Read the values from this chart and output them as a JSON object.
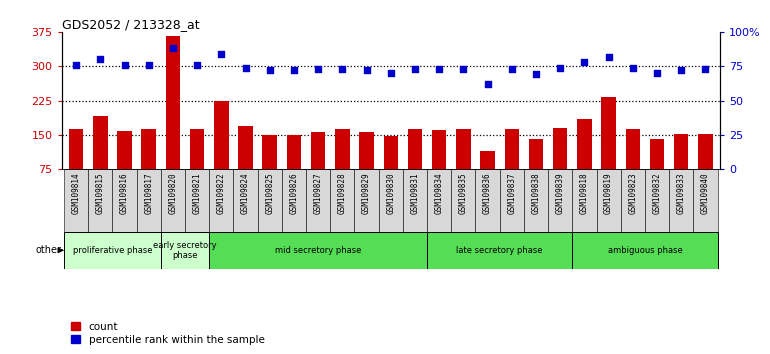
{
  "title": "GDS2052 / 213328_at",
  "samples": [
    "GSM109814",
    "GSM109815",
    "GSM109816",
    "GSM109817",
    "GSM109820",
    "GSM109821",
    "GSM109822",
    "GSM109824",
    "GSM109825",
    "GSM109826",
    "GSM109827",
    "GSM109828",
    "GSM109829",
    "GSM109830",
    "GSM109831",
    "GSM109834",
    "GSM109835",
    "GSM109836",
    "GSM109837",
    "GSM109838",
    "GSM109839",
    "GSM109818",
    "GSM109819",
    "GSM109823",
    "GSM109832",
    "GSM109833",
    "GSM109840"
  ],
  "counts": [
    163,
    192,
    158,
    163,
    365,
    163,
    224,
    170,
    150,
    150,
    157,
    162,
    157,
    148,
    162,
    160,
    162,
    115,
    162,
    140,
    166,
    185,
    233,
    162,
    142,
    151,
    151
  ],
  "percentiles": [
    76,
    80,
    76,
    76,
    88,
    76,
    84,
    74,
    72,
    72,
    73,
    73,
    72,
    70,
    73,
    73,
    73,
    62,
    73,
    69,
    74,
    78,
    82,
    74,
    70,
    72,
    73
  ],
  "ylim_left": [
    75,
    375
  ],
  "ylim_right": [
    0,
    100
  ],
  "yticks_left": [
    75,
    150,
    225,
    300,
    375
  ],
  "yticks_right": [
    0,
    25,
    50,
    75,
    100
  ],
  "ytick_labels_left": [
    "75",
    "150",
    "225",
    "300",
    "375"
  ],
  "ytick_labels_right": [
    "0",
    "25",
    "50",
    "75",
    "100%"
  ],
  "hlines": [
    150,
    225,
    300
  ],
  "bar_color": "#cc0000",
  "dot_color": "#0000cc",
  "phase_groups": [
    {
      "label": "proliferative phase",
      "start": 0,
      "end": 3,
      "color": "#ccffcc"
    },
    {
      "label": "early secretory\nphase",
      "start": 4,
      "end": 5,
      "color": "#ccffcc"
    },
    {
      "label": "mid secretory phase",
      "start": 6,
      "end": 14,
      "color": "#55dd55"
    },
    {
      "label": "late secretory phase",
      "start": 15,
      "end": 20,
      "color": "#55dd55"
    },
    {
      "label": "ambiguous phase",
      "start": 21,
      "end": 26,
      "color": "#55dd55"
    }
  ],
  "legend_count_label": "count",
  "legend_pct_label": "percentile rank within the sample",
  "other_label": "other",
  "plot_bg": "#ffffff",
  "tick_bg": "#d8d8d8"
}
